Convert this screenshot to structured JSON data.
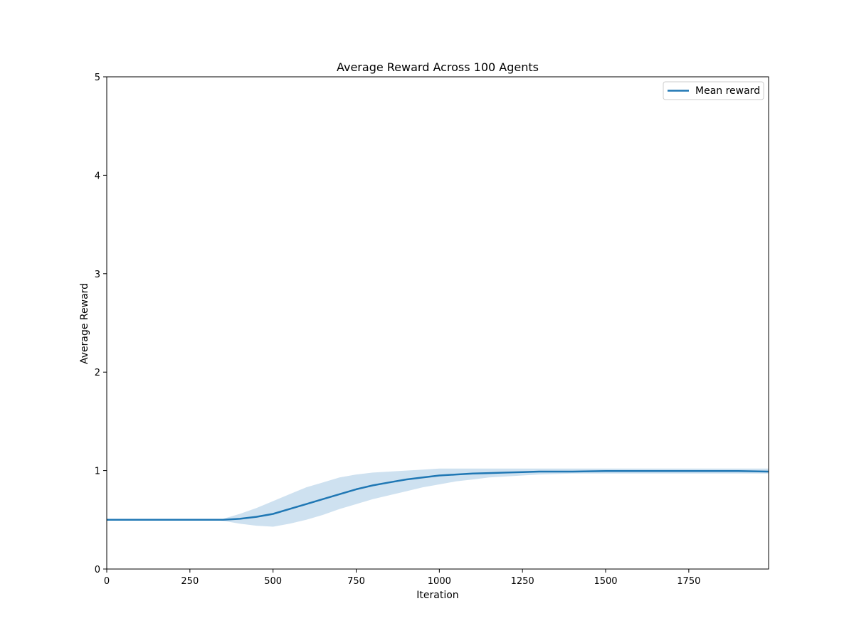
{
  "chart_data": {
    "type": "line",
    "title": "Average Reward Across 100 Agents",
    "xlabel": "Iteration",
    "ylabel": "Average Reward",
    "xlim": [
      0,
      1990
    ],
    "ylim": [
      0,
      5
    ],
    "x_ticks": [
      0,
      250,
      500,
      750,
      1000,
      1250,
      1500,
      1750
    ],
    "y_ticks": [
      0,
      1,
      2,
      3,
      4,
      5
    ],
    "grid": false,
    "legend": {
      "placement": "top-right",
      "entries": [
        "Mean reward"
      ]
    },
    "colors": {
      "line": "#1f77b4",
      "band": "#a6c8e4"
    },
    "series": [
      {
        "name": "Mean reward",
        "x": [
          0,
          100,
          200,
          300,
          350,
          400,
          450,
          500,
          550,
          600,
          650,
          700,
          750,
          800,
          850,
          900,
          950,
          1000,
          1050,
          1100,
          1150,
          1200,
          1250,
          1300,
          1400,
          1500,
          1600,
          1700,
          1800,
          1900,
          1990
        ],
        "values": [
          0.5,
          0.5,
          0.5,
          0.5,
          0.5,
          0.51,
          0.53,
          0.56,
          0.61,
          0.66,
          0.71,
          0.76,
          0.81,
          0.85,
          0.88,
          0.91,
          0.93,
          0.95,
          0.96,
          0.97,
          0.975,
          0.98,
          0.985,
          0.99,
          0.99,
          0.995,
          0.995,
          0.995,
          0.995,
          0.995,
          0.99
        ],
        "band_upper": [
          0.5,
          0.5,
          0.5,
          0.5,
          0.51,
          0.56,
          0.62,
          0.69,
          0.76,
          0.83,
          0.88,
          0.93,
          0.96,
          0.98,
          0.99,
          1.0,
          1.01,
          1.02,
          1.02,
          1.02,
          1.02,
          1.02,
          1.02,
          1.02,
          1.02,
          1.02,
          1.02,
          1.02,
          1.02,
          1.02,
          1.02
        ],
        "band_lower": [
          0.5,
          0.5,
          0.5,
          0.5,
          0.49,
          0.46,
          0.44,
          0.43,
          0.46,
          0.5,
          0.55,
          0.61,
          0.66,
          0.71,
          0.75,
          0.79,
          0.83,
          0.86,
          0.89,
          0.91,
          0.93,
          0.94,
          0.95,
          0.96,
          0.97,
          0.97,
          0.97,
          0.97,
          0.97,
          0.97,
          0.97
        ]
      }
    ]
  }
}
